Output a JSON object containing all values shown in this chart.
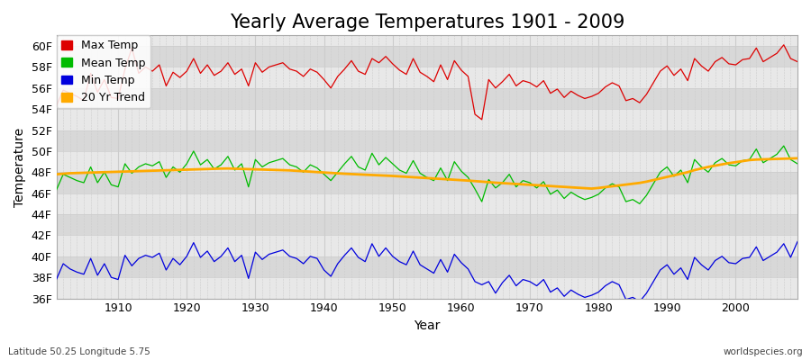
{
  "title": "Yearly Average Temperatures 1901 - 2009",
  "xlabel": "Year",
  "ylabel": "Temperature",
  "footnote_left": "Latitude 50.25 Longitude 5.75",
  "footnote_right": "worldspecies.org",
  "legend_entries": [
    "Max Temp",
    "Mean Temp",
    "Min Temp",
    "20 Yr Trend"
  ],
  "legend_colors": [
    "#dd0000",
    "#00bb00",
    "#0000dd",
    "#ffaa00"
  ],
  "line_colors": [
    "#dd0000",
    "#00bb00",
    "#0000dd",
    "#ffaa00"
  ],
  "years": [
    1901,
    1902,
    1903,
    1904,
    1905,
    1906,
    1907,
    1908,
    1909,
    1910,
    1911,
    1912,
    1913,
    1914,
    1915,
    1916,
    1917,
    1918,
    1919,
    1920,
    1921,
    1922,
    1923,
    1924,
    1925,
    1926,
    1927,
    1928,
    1929,
    1930,
    1931,
    1932,
    1933,
    1934,
    1935,
    1936,
    1937,
    1938,
    1939,
    1940,
    1941,
    1942,
    1943,
    1944,
    1945,
    1946,
    1947,
    1948,
    1949,
    1950,
    1951,
    1952,
    1953,
    1954,
    1955,
    1956,
    1957,
    1958,
    1959,
    1960,
    1961,
    1962,
    1963,
    1964,
    1965,
    1966,
    1967,
    1968,
    1969,
    1970,
    1971,
    1972,
    1973,
    1974,
    1975,
    1976,
    1977,
    1978,
    1979,
    1980,
    1981,
    1982,
    1983,
    1984,
    1985,
    1986,
    1987,
    1988,
    1989,
    1990,
    1991,
    1992,
    1993,
    1994,
    1995,
    1996,
    1997,
    1998,
    1999,
    2000,
    2001,
    2002,
    2003,
    2004,
    2005,
    2006,
    2007,
    2008,
    2009
  ],
  "max_temp": [
    54.3,
    55.8,
    55.5,
    55.2,
    54.8,
    57.4,
    55.6,
    56.8,
    55.1,
    55.0,
    57.8,
    59.8,
    57.4,
    58.0,
    57.6,
    58.2,
    56.2,
    57.5,
    57.0,
    57.6,
    58.8,
    57.4,
    58.2,
    57.2,
    57.6,
    58.4,
    57.3,
    57.8,
    56.2,
    58.4,
    57.5,
    58.0,
    58.2,
    58.4,
    57.8,
    57.6,
    57.1,
    57.8,
    57.5,
    56.8,
    56.0,
    57.1,
    57.8,
    58.6,
    57.6,
    57.3,
    58.8,
    58.4,
    59.0,
    58.3,
    57.7,
    57.3,
    58.8,
    57.5,
    57.1,
    56.6,
    58.2,
    56.8,
    58.6,
    57.7,
    57.1,
    53.5,
    53.0,
    56.8,
    56.0,
    56.6,
    57.3,
    56.2,
    56.7,
    56.5,
    56.1,
    56.7,
    55.5,
    55.9,
    55.1,
    55.7,
    55.3,
    55.0,
    55.2,
    55.5,
    56.1,
    56.5,
    56.2,
    54.8,
    55.0,
    54.6,
    55.4,
    56.5,
    57.6,
    58.1,
    57.2,
    57.8,
    56.7,
    58.8,
    58.1,
    57.6,
    58.5,
    58.9,
    58.3,
    58.2,
    58.7,
    58.8,
    59.8,
    58.5,
    58.9,
    59.3,
    60.1,
    58.8,
    58.5
  ],
  "mean_temp": [
    46.3,
    47.8,
    47.5,
    47.2,
    47.0,
    48.5,
    47.0,
    48.0,
    46.8,
    46.6,
    48.8,
    47.9,
    48.5,
    48.8,
    48.6,
    49.0,
    47.5,
    48.5,
    48.0,
    48.8,
    50.0,
    48.7,
    49.2,
    48.3,
    48.7,
    49.5,
    48.2,
    48.8,
    46.6,
    49.2,
    48.5,
    48.9,
    49.1,
    49.3,
    48.7,
    48.5,
    48.0,
    48.7,
    48.4,
    47.8,
    47.2,
    48.0,
    48.8,
    49.5,
    48.5,
    48.2,
    49.8,
    48.7,
    49.4,
    48.8,
    48.2,
    47.9,
    49.1,
    47.9,
    47.5,
    47.2,
    48.4,
    47.2,
    49.0,
    48.1,
    47.5,
    46.4,
    45.2,
    47.3,
    46.5,
    47.0,
    47.8,
    46.6,
    47.2,
    47.0,
    46.5,
    47.1,
    45.9,
    46.3,
    45.5,
    46.1,
    45.7,
    45.4,
    45.6,
    45.9,
    46.5,
    46.9,
    46.6,
    45.2,
    45.4,
    45.0,
    45.8,
    46.9,
    48.0,
    48.5,
    47.6,
    48.2,
    47.0,
    49.2,
    48.5,
    48.0,
    48.9,
    49.3,
    48.7,
    48.6,
    49.1,
    49.2,
    50.2,
    48.9,
    49.3,
    49.7,
    50.5,
    49.2,
    48.8
  ],
  "min_temp": [
    37.8,
    39.3,
    38.8,
    38.5,
    38.3,
    39.8,
    38.2,
    39.3,
    38.0,
    37.8,
    40.1,
    39.1,
    39.8,
    40.1,
    39.9,
    40.3,
    38.7,
    39.8,
    39.2,
    40.0,
    41.3,
    39.9,
    40.5,
    39.5,
    40.0,
    40.8,
    39.5,
    40.1,
    37.9,
    40.4,
    39.7,
    40.2,
    40.4,
    40.6,
    40.0,
    39.8,
    39.3,
    40.0,
    39.8,
    38.7,
    38.1,
    39.3,
    40.1,
    40.8,
    39.9,
    39.5,
    41.2,
    40.0,
    40.8,
    40.0,
    39.5,
    39.2,
    40.5,
    39.2,
    38.8,
    38.4,
    39.7,
    38.5,
    40.2,
    39.4,
    38.8,
    37.6,
    37.3,
    37.6,
    36.5,
    37.5,
    38.2,
    37.2,
    37.8,
    37.6,
    37.2,
    37.8,
    36.6,
    37.0,
    36.2,
    36.8,
    36.4,
    36.1,
    36.3,
    36.6,
    37.2,
    37.6,
    37.3,
    35.9,
    36.1,
    35.7,
    36.5,
    37.6,
    38.7,
    39.2,
    38.3,
    38.9,
    37.8,
    39.9,
    39.2,
    38.7,
    39.6,
    40.0,
    39.4,
    39.3,
    39.8,
    39.9,
    40.9,
    39.6,
    40.0,
    40.4,
    41.2,
    39.9,
    41.4
  ],
  "trend_temp": [
    47.8,
    47.85,
    47.9,
    47.92,
    47.94,
    47.96,
    47.98,
    48.0,
    48.02,
    48.04,
    48.06,
    48.08,
    48.1,
    48.12,
    48.14,
    48.16,
    48.18,
    48.2,
    48.22,
    48.24,
    48.26,
    48.28,
    48.3,
    48.32,
    48.34,
    48.35,
    48.33,
    48.31,
    48.29,
    48.27,
    48.25,
    48.23,
    48.21,
    48.19,
    48.17,
    48.13,
    48.09,
    48.05,
    48.01,
    47.97,
    47.93,
    47.89,
    47.85,
    47.82,
    47.79,
    47.76,
    47.73,
    47.7,
    47.67,
    47.64,
    47.6,
    47.56,
    47.52,
    47.48,
    47.44,
    47.4,
    47.36,
    47.32,
    47.28,
    47.24,
    47.2,
    47.15,
    47.1,
    47.05,
    47.0,
    46.96,
    46.92,
    46.88,
    46.84,
    46.8,
    46.76,
    46.72,
    46.68,
    46.64,
    46.6,
    46.56,
    46.52,
    46.48,
    46.44,
    46.5,
    46.58,
    46.66,
    46.74,
    46.82,
    46.9,
    46.98,
    47.1,
    47.25,
    47.4,
    47.55,
    47.7,
    47.85,
    48.0,
    48.2,
    48.35,
    48.5,
    48.62,
    48.74,
    48.86,
    48.95,
    49.05,
    49.15,
    49.2,
    49.22,
    49.24,
    49.26,
    49.28,
    49.3,
    49.32
  ],
  "ylim": [
    36,
    61
  ],
  "yticks": [
    36,
    38,
    40,
    42,
    44,
    46,
    48,
    50,
    52,
    54,
    56,
    58,
    60
  ],
  "ytick_labels": [
    "36F",
    "38F",
    "40F",
    "42F",
    "44F",
    "46F",
    "48F",
    "50F",
    "52F",
    "54F",
    "56F",
    "58F",
    "60F"
  ],
  "xlim": [
    1901,
    2009
  ],
  "xticks": [
    1910,
    1920,
    1930,
    1940,
    1950,
    1960,
    1970,
    1980,
    1990,
    2000
  ],
  "bg_color": "#ffffff",
  "plot_bg_light": "#e8e8e8",
  "plot_bg_dark": "#d8d8d8",
  "grid_color": "#cccccc",
  "title_fontsize": 15,
  "axis_label_fontsize": 10,
  "tick_fontsize": 9,
  "legend_fontsize": 9
}
